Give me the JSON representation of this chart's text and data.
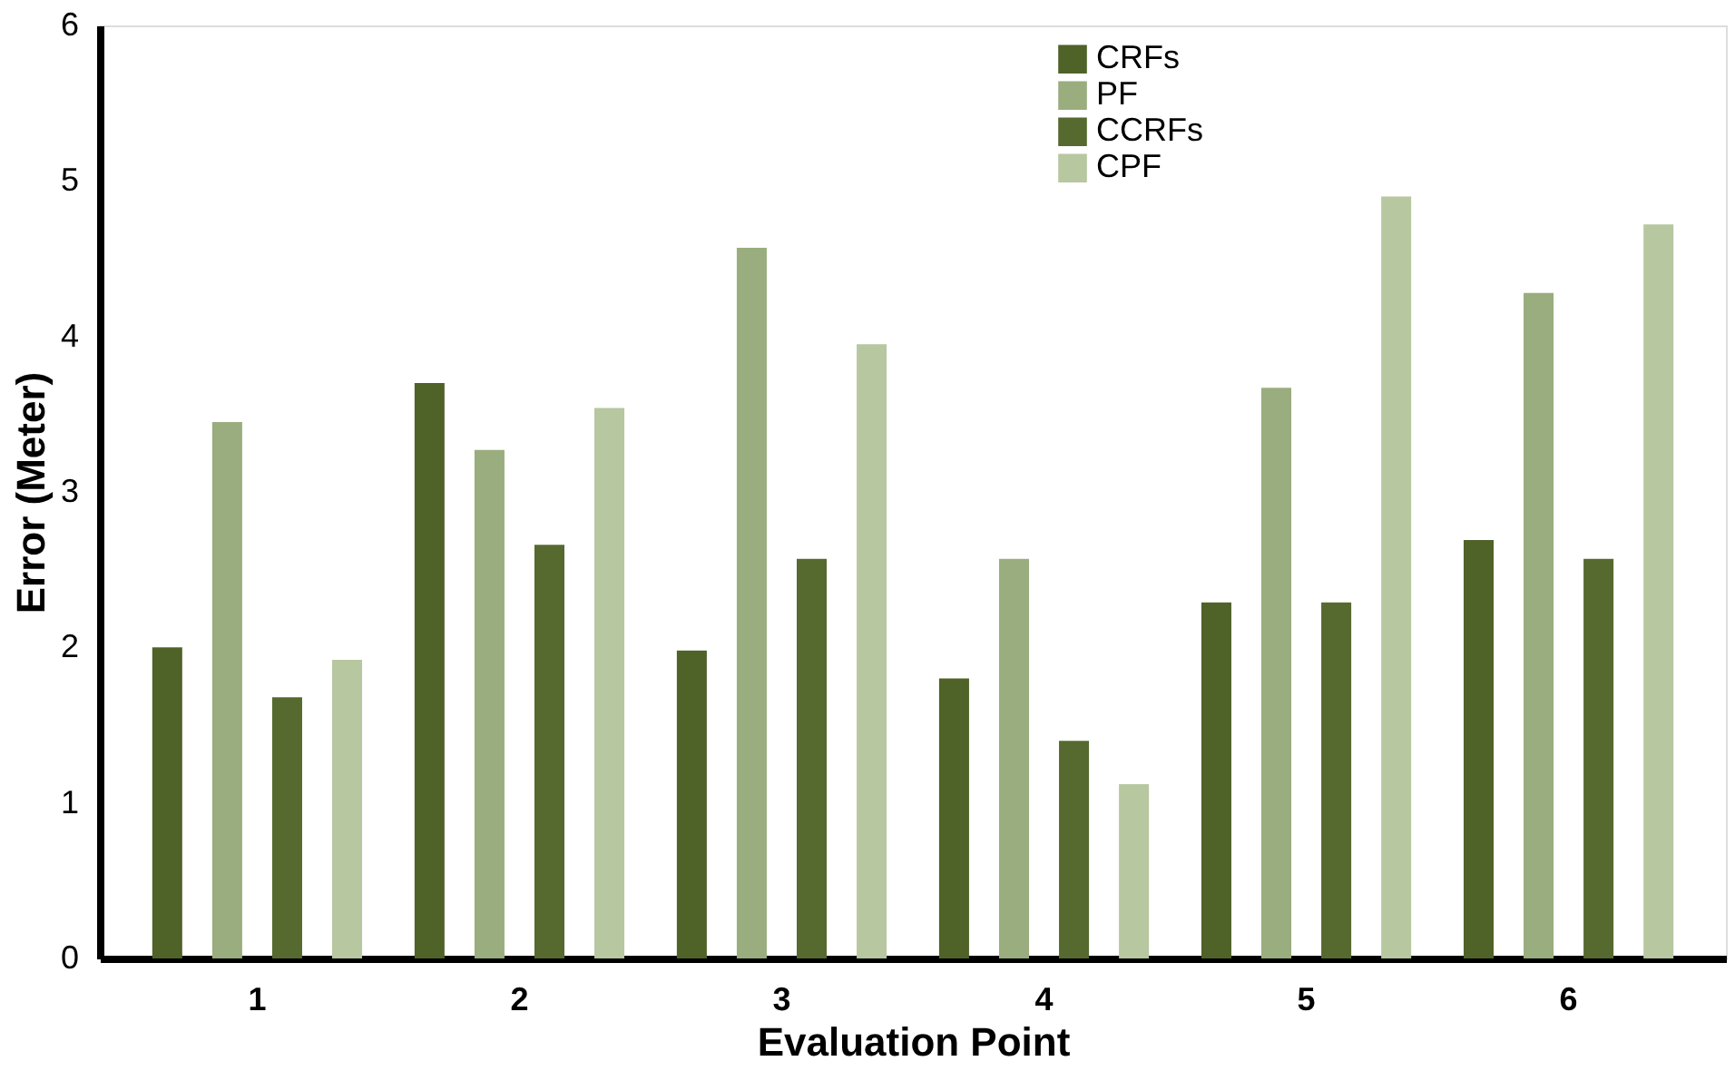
{
  "chart_data": {
    "type": "bar",
    "xlabel": "Evaluation Point",
    "ylabel": "Error (Meter)",
    "categories": [
      "1",
      "2",
      "3",
      "4",
      "5",
      "6"
    ],
    "series": [
      {
        "name": "CRFs",
        "color": "#4f6228",
        "values": [
          2.0,
          3.7,
          1.98,
          1.8,
          2.29,
          2.69
        ]
      },
      {
        "name": "PF",
        "color": "#9aad7e",
        "values": [
          3.45,
          3.27,
          4.57,
          2.57,
          3.67,
          4.28
        ]
      },
      {
        "name": "CCRFs",
        "color": "#56692f",
        "values": [
          1.68,
          2.66,
          2.57,
          1.4,
          2.29,
          2.57
        ]
      },
      {
        "name": "CPF",
        "color": "#b7c7a0",
        "values": [
          1.92,
          3.54,
          3.95,
          1.12,
          4.9,
          4.72
        ]
      }
    ],
    "ylim": [
      0,
      6
    ],
    "yticks": [
      0,
      1,
      2,
      3,
      4,
      5,
      6
    ],
    "grid": false,
    "legend": "top right"
  }
}
